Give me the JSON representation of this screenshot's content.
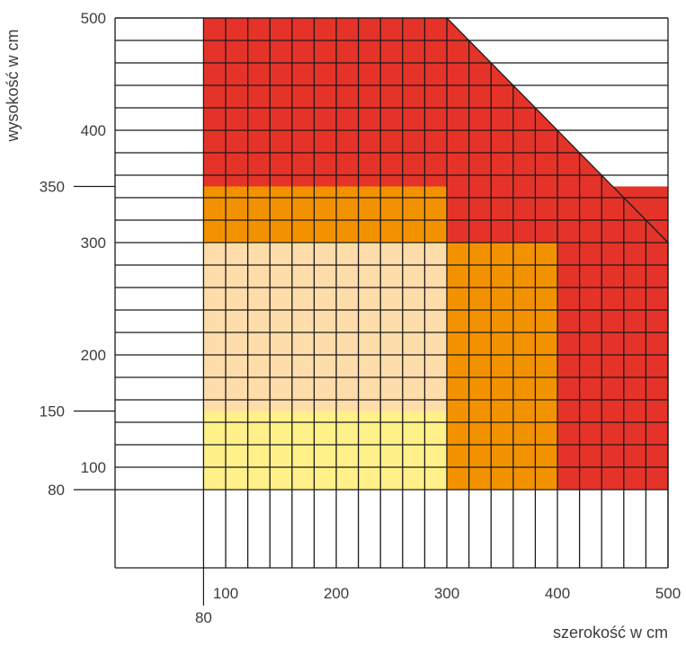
{
  "chart_data": {
    "type": "heatmap",
    "title": "",
    "xlabel": "szerokość w cm",
    "ylabel": "wysokość w cm",
    "xlim": [
      0,
      500
    ],
    "ylim": [
      80,
      500
    ],
    "grid": true,
    "x_ticks": [
      "100",
      "200",
      "300",
      "400",
      "500"
    ],
    "x_extra_tick": "80",
    "y_ticks": [
      "100",
      "200",
      "300",
      "400",
      "500"
    ],
    "y_extra_ticks": [
      "80",
      "150",
      "350"
    ],
    "cells_grid_x_from": 80,
    "cells_grid_y_to": 500,
    "regions": [
      {
        "x": [
          80,
          300
        ],
        "y": [
          80,
          150
        ],
        "color": "#FFF08A"
      },
      {
        "x": [
          80,
          300
        ],
        "y": [
          150,
          300
        ],
        "color": "#FFDDAA"
      },
      {
        "x": [
          80,
          300
        ],
        "y": [
          300,
          350
        ],
        "color": "#F39200"
      },
      {
        "x": [
          300,
          400
        ],
        "y": [
          80,
          300
        ],
        "color": "#F39200"
      },
      {
        "x": [
          400,
          500
        ],
        "y": [
          80,
          300
        ],
        "color": "#E63329"
      },
      {
        "x": [
          300,
          500
        ],
        "y": [
          300,
          350
        ],
        "color": "#E63329"
      },
      {
        "x": [
          80,
          300
        ],
        "y": [
          350,
          500
        ],
        "color": "#E63329"
      },
      {
        "x": [
          300,
          500
        ],
        "y": [
          350,
          500
        ],
        "color": "#E63329",
        "diagonal_cut": {
          "from": [
            300,
            500
          ],
          "to": [
            500,
            300
          ]
        }
      }
    ]
  }
}
